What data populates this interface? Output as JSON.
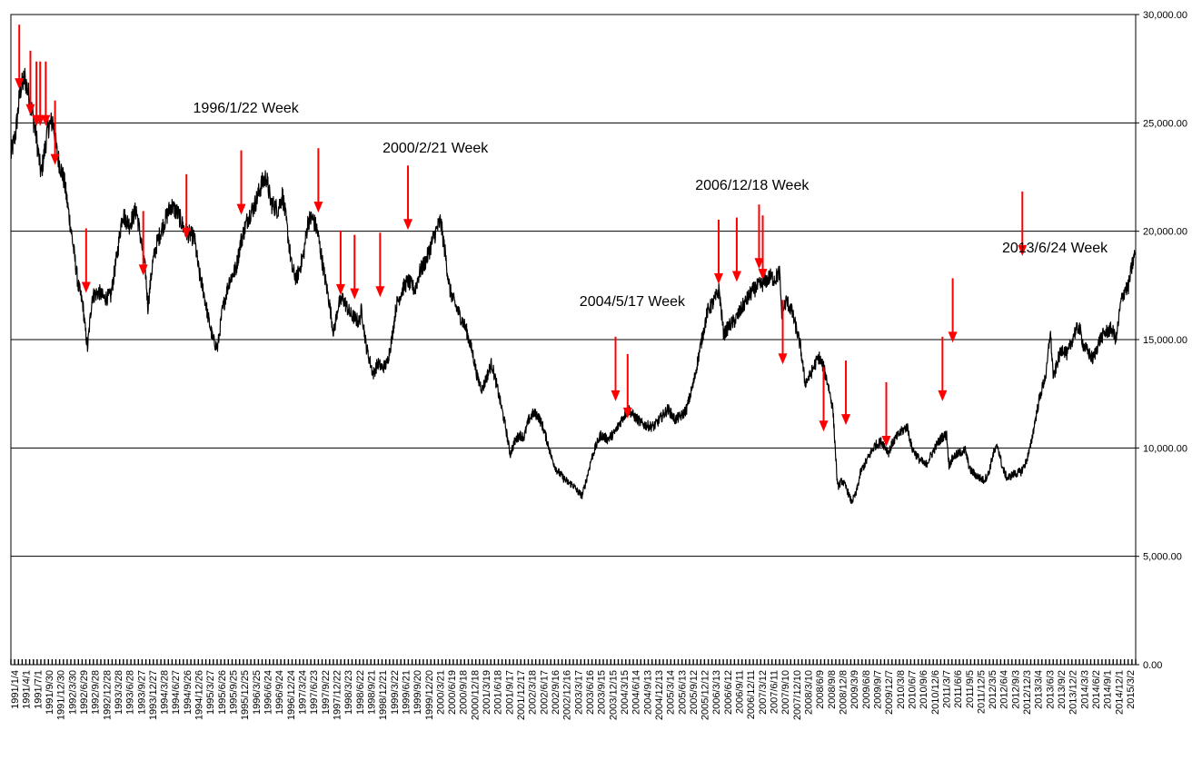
{
  "chart_data": {
    "type": "line",
    "title": "",
    "xlabel": "",
    "ylabel": "",
    "ylim": [
      0,
      30000
    ],
    "y_ticks": [
      "30,000.00",
      "25,000.00",
      "20,000.00",
      "15,000.00",
      "10,000.00",
      "5,000.00",
      "0.00"
    ],
    "y_tick_values": [
      30000,
      25000,
      20000,
      15000,
      10000,
      5000,
      0
    ],
    "y_axis_side": "right",
    "grid": "horizontal",
    "x_tick_labels": [
      "1991/1/4",
      "1991/4/1",
      "1991/7/1",
      "1991/9/30",
      "1991/12/30",
      "1992/3/30",
      "1992/6/29",
      "1992/9/28",
      "1992/12/28",
      "1993/3/28",
      "1993/6/28",
      "1993/9/27",
      "1993/12/27",
      "1994/3/28",
      "1994/6/27",
      "1994/9/26",
      "1994/12/26",
      "1995/3/27",
      "1995/6/26",
      "1995/9/25",
      "1995/12/25",
      "1996/3/25",
      "1996/6/24",
      "1996/9/24",
      "1996/12/24",
      "1997/3/24",
      "1997/6/23",
      "1997/9/22",
      "1997/12/22",
      "1998/3/23",
      "1998/6/22",
      "1998/9/21",
      "1998/12/21",
      "1999/3/22",
      "1999/6/21",
      "1999/9/20",
      "1999/12/20",
      "2000/3/21",
      "2000/6/19",
      "2000/9/18",
      "2000/12/18",
      "2001/3/19",
      "2001/6/18",
      "2001/9/17",
      "2001/12/17",
      "2002/3/18",
      "2002/6/17",
      "2002/9/16",
      "2002/12/16",
      "2003/3/17",
      "2003/6/16",
      "2003/9/15",
      "2003/12/15",
      "2004/3/15",
      "2004/6/14",
      "2004/9/13",
      "2004/12/13",
      "2005/3/14",
      "2005/6/13",
      "2005/9/12",
      "2005/12/12",
      "2006/3/13",
      "2006/6/12",
      "2006/9/11",
      "2006/12/11",
      "2007/3/12",
      "2007/6/11",
      "2007/9/10",
      "2007/12/10",
      "2008/3/10",
      "2008/6/9",
      "2008/9/8",
      "2008/12/8",
      "2009/3/9",
      "2009/6/8",
      "2009/9/7",
      "2009/12/7",
      "2010/3/8",
      "2010/6/7",
      "2010/9/6",
      "2010/12/6",
      "2011/3/7",
      "2011/6/6",
      "2011/9/5",
      "2011/12/5",
      "2012/3/5",
      "2012/6/4",
      "2012/9/3",
      "2012/12/3",
      "2013/3/4",
      "2013/6/3",
      "2013/9/2",
      "2013/12/2",
      "2014/3/3",
      "2014/6/2",
      "2014/9/1",
      "2014/12/1",
      "2015/3/2"
    ],
    "series": [
      {
        "values": [
          [
            1991.0,
            23500
          ],
          [
            1991.1,
            24500
          ],
          [
            1991.2,
            26500
          ],
          [
            1991.3,
            27100
          ],
          [
            1991.45,
            25600
          ],
          [
            1991.55,
            24300
          ],
          [
            1991.65,
            22600
          ],
          [
            1991.8,
            24800
          ],
          [
            1991.9,
            25100
          ],
          [
            1992.0,
            23500
          ],
          [
            1992.15,
            22300
          ],
          [
            1992.3,
            20000
          ],
          [
            1992.45,
            17500
          ],
          [
            1992.55,
            16600
          ],
          [
            1992.6,
            15500
          ],
          [
            1992.65,
            14600
          ],
          [
            1992.75,
            17000
          ],
          [
            1992.9,
            17200
          ],
          [
            1993.0,
            16900
          ],
          [
            1993.15,
            17000
          ],
          [
            1993.3,
            19100
          ],
          [
            1993.4,
            20800
          ],
          [
            1993.55,
            20300
          ],
          [
            1993.7,
            21000
          ],
          [
            1993.8,
            19600
          ],
          [
            1993.9,
            18100
          ],
          [
            1993.95,
            16500
          ],
          [
            1994.05,
            18500
          ],
          [
            1994.15,
            19500
          ],
          [
            1994.3,
            20400
          ],
          [
            1994.45,
            21200
          ],
          [
            1994.6,
            20800
          ],
          [
            1994.75,
            20000
          ],
          [
            1994.95,
            19700
          ],
          [
            1995.05,
            18100
          ],
          [
            1995.15,
            17200
          ],
          [
            1995.25,
            16000
          ],
          [
            1995.35,
            15000
          ],
          [
            1995.45,
            14600
          ],
          [
            1995.55,
            16300
          ],
          [
            1995.7,
            17700
          ],
          [
            1995.85,
            18300
          ],
          [
            1995.95,
            19500
          ],
          [
            1996.1,
            20600
          ],
          [
            1996.25,
            21200
          ],
          [
            1996.4,
            22200
          ],
          [
            1996.5,
            22500
          ],
          [
            1996.6,
            21300
          ],
          [
            1996.75,
            21000
          ],
          [
            1996.85,
            21700
          ],
          [
            1996.95,
            20100
          ],
          [
            1997.05,
            18300
          ],
          [
            1997.15,
            17800
          ],
          [
            1997.3,
            18900
          ],
          [
            1997.4,
            20500
          ],
          [
            1997.5,
            20600
          ],
          [
            1997.6,
            20000
          ],
          [
            1997.75,
            18000
          ],
          [
            1997.85,
            16800
          ],
          [
            1997.95,
            15300
          ],
          [
            1998.05,
            16600
          ],
          [
            1998.15,
            16900
          ],
          [
            1998.3,
            16200
          ],
          [
            1998.4,
            16000
          ],
          [
            1998.5,
            15800
          ],
          [
            1998.55,
            16400
          ],
          [
            1998.65,
            14700
          ],
          [
            1998.8,
            13400
          ],
          [
            1998.9,
            13900
          ],
          [
            1999.0,
            13700
          ],
          [
            1999.1,
            13900
          ],
          [
            1999.2,
            15000
          ],
          [
            1999.3,
            16600
          ],
          [
            1999.45,
            17400
          ],
          [
            1999.55,
            17700
          ],
          [
            1999.7,
            17300
          ],
          [
            1999.8,
            18100
          ],
          [
            1999.95,
            18700
          ],
          [
            2000.1,
            19700
          ],
          [
            2000.25,
            20500
          ],
          [
            2000.35,
            19000
          ],
          [
            2000.45,
            17300
          ],
          [
            2000.55,
            16700
          ],
          [
            2000.65,
            16200
          ],
          [
            2000.8,
            15500
          ],
          [
            2000.95,
            14300
          ],
          [
            2001.05,
            13200
          ],
          [
            2001.15,
            12700
          ],
          [
            2001.25,
            13300
          ],
          [
            2001.35,
            13900
          ],
          [
            2001.45,
            13000
          ],
          [
            2001.55,
            12000
          ],
          [
            2001.65,
            11000
          ],
          [
            2001.75,
            9700
          ],
          [
            2001.85,
            10300
          ],
          [
            2001.95,
            10600
          ],
          [
            2002.05,
            10500
          ],
          [
            2002.15,
            11300
          ],
          [
            2002.25,
            11600
          ],
          [
            2002.35,
            11500
          ],
          [
            2002.45,
            11000
          ],
          [
            2002.55,
            10300
          ],
          [
            2002.65,
            9500
          ],
          [
            2002.75,
            9000
          ],
          [
            2002.9,
            8600
          ],
          [
            2003.0,
            8400
          ],
          [
            2003.1,
            8300
          ],
          [
            2003.2,
            8000
          ],
          [
            2003.3,
            7800
          ],
          [
            2003.4,
            8600
          ],
          [
            2003.5,
            9500
          ],
          [
            2003.6,
            10100
          ],
          [
            2003.7,
            10600
          ],
          [
            2003.85,
            10400
          ],
          [
            2004.0,
            10700
          ],
          [
            2004.15,
            11300
          ],
          [
            2004.3,
            11800
          ],
          [
            2004.4,
            11500
          ],
          [
            2004.5,
            11300
          ],
          [
            2004.6,
            11100
          ],
          [
            2004.75,
            11000
          ],
          [
            2004.85,
            11000
          ],
          [
            2005.0,
            11400
          ],
          [
            2005.15,
            11800
          ],
          [
            2005.3,
            11300
          ],
          [
            2005.45,
            11500
          ],
          [
            2005.55,
            11800
          ],
          [
            2005.7,
            13000
          ],
          [
            2005.85,
            14700
          ],
          [
            2006.0,
            16300
          ],
          [
            2006.15,
            16800
          ],
          [
            2006.25,
            17300
          ],
          [
            2006.35,
            15200
          ],
          [
            2006.45,
            15600
          ],
          [
            2006.6,
            15900
          ],
          [
            2006.75,
            16500
          ],
          [
            2006.95,
            17200
          ],
          [
            2007.05,
            17400
          ],
          [
            2007.2,
            17600
          ],
          [
            2007.35,
            17900
          ],
          [
            2007.45,
            17800
          ],
          [
            2007.55,
            18100
          ],
          [
            2007.6,
            16200
          ],
          [
            2007.7,
            16800
          ],
          [
            2007.8,
            16400
          ],
          [
            2007.9,
            15600
          ],
          [
            2008.0,
            14700
          ],
          [
            2008.1,
            13000
          ],
          [
            2008.2,
            13300
          ],
          [
            2008.3,
            13800
          ],
          [
            2008.4,
            14200
          ],
          [
            2008.5,
            13700
          ],
          [
            2008.6,
            12900
          ],
          [
            2008.7,
            11800
          ],
          [
            2008.75,
            10000
          ],
          [
            2008.8,
            8200
          ],
          [
            2008.9,
            8500
          ],
          [
            2009.0,
            8100
          ],
          [
            2009.1,
            7500
          ],
          [
            2009.2,
            7900
          ],
          [
            2009.3,
            8900
          ],
          [
            2009.45,
            9500
          ],
          [
            2009.6,
            10100
          ],
          [
            2009.75,
            10300
          ],
          [
            2009.9,
            9800
          ],
          [
            2010.0,
            10300
          ],
          [
            2010.15,
            10700
          ],
          [
            2010.3,
            11000
          ],
          [
            2010.4,
            10000
          ],
          [
            2010.55,
            9500
          ],
          [
            2010.7,
            9200
          ],
          [
            2010.8,
            9600
          ],
          [
            2010.95,
            10200
          ],
          [
            2011.05,
            10500
          ],
          [
            2011.15,
            10600
          ],
          [
            2011.2,
            9200
          ],
          [
            2011.3,
            9600
          ],
          [
            2011.45,
            9800
          ],
          [
            2011.55,
            9900
          ],
          [
            2011.65,
            9000
          ],
          [
            2011.8,
            8700
          ],
          [
            2011.95,
            8500
          ],
          [
            2012.05,
            8800
          ],
          [
            2012.15,
            9700
          ],
          [
            2012.25,
            10100
          ],
          [
            2012.35,
            9100
          ],
          [
            2012.45,
            8600
          ],
          [
            2012.6,
            8800
          ],
          [
            2012.75,
            8900
          ],
          [
            2012.85,
            9300
          ],
          [
            2012.95,
            10000
          ],
          [
            2013.05,
            11200
          ],
          [
            2013.15,
            12300
          ],
          [
            2013.3,
            13500
          ],
          [
            2013.38,
            15400
          ],
          [
            2013.45,
            13200
          ],
          [
            2013.55,
            14100
          ],
          [
            2013.65,
            14600
          ],
          [
            2013.75,
            14300
          ],
          [
            2013.9,
            15300
          ],
          [
            2014.0,
            15600
          ],
          [
            2014.1,
            14700
          ],
          [
            2014.2,
            14400
          ],
          [
            2014.3,
            14100
          ],
          [
            2014.45,
            15000
          ],
          [
            2014.55,
            15300
          ],
          [
            2014.7,
            15500
          ],
          [
            2014.8,
            15000
          ],
          [
            2014.9,
            16700
          ],
          [
            2015.0,
            17400
          ],
          [
            2015.05,
            17300
          ],
          [
            2015.15,
            18500
          ],
          [
            2015.2,
            18900
          ]
        ]
      }
    ],
    "annotations": [
      {
        "text": "1996/1/22 Week",
        "x": 1996.06
      },
      {
        "text": "2000/2/21 Week",
        "x": 2000.14
      },
      {
        "text": "2004/5/17 Week",
        "x": 2004.38
      },
      {
        "text": "2006/12/18 Week",
        "x": 2006.96
      },
      {
        "text": "2013/6/24 Week",
        "x": 2013.48
      }
    ],
    "arrow_markers": [
      {
        "x": 1991.18,
        "y": 26600
      },
      {
        "x": 1991.42,
        "y": 25400
      },
      {
        "x": 1991.55,
        "y": 24900
      },
      {
        "x": 1991.63,
        "y": 24900
      },
      {
        "x": 1991.75,
        "y": 24900
      },
      {
        "x": 1991.95,
        "y": 23100
      },
      {
        "x": 1992.62,
        "y": 17200
      },
      {
        "x": 1993.85,
        "y": 18000
      },
      {
        "x": 1994.78,
        "y": 19700
      },
      {
        "x": 1995.96,
        "y": 20800
      },
      {
        "x": 1997.62,
        "y": 20900
      },
      {
        "x": 1998.1,
        "y": 17100
      },
      {
        "x": 1998.4,
        "y": 16900
      },
      {
        "x": 1998.95,
        "y": 17000
      },
      {
        "x": 1999.55,
        "y": 20100
      },
      {
        "x": 2004.02,
        "y": 12200
      },
      {
        "x": 2004.28,
        "y": 11400
      },
      {
        "x": 2006.24,
        "y": 17600
      },
      {
        "x": 2006.63,
        "y": 17700
      },
      {
        "x": 2007.11,
        "y": 18300
      },
      {
        "x": 2007.19,
        "y": 17800
      },
      {
        "x": 2007.62,
        "y": 13900
      },
      {
        "x": 2008.5,
        "y": 10800
      },
      {
        "x": 2008.98,
        "y": 11100
      },
      {
        "x": 2009.85,
        "y": 10100
      },
      {
        "x": 2011.06,
        "y": 12200
      },
      {
        "x": 2011.28,
        "y": 14900
      },
      {
        "x": 2012.78,
        "y": 18900
      }
    ]
  }
}
